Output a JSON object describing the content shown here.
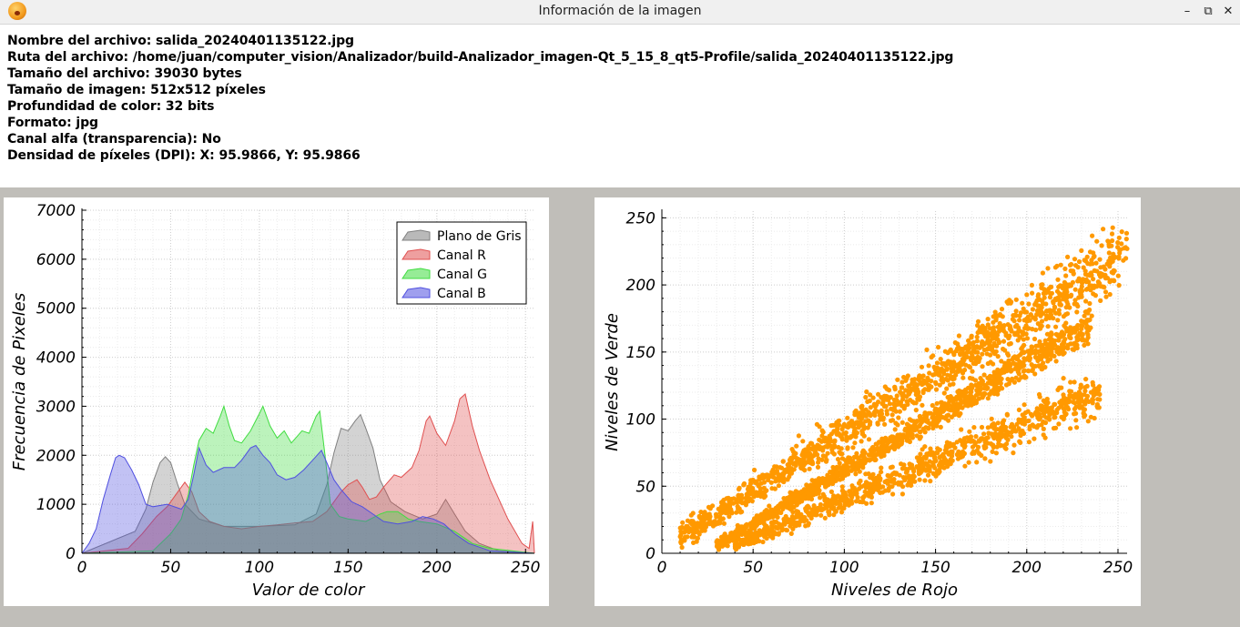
{
  "window": {
    "title": "Información de la imagen",
    "app_icon": "warning-face-icon",
    "buttons": {
      "minimize": "–",
      "restore": "⧉",
      "close": "✕"
    }
  },
  "info": {
    "lines": [
      "Nombre del archivo: salida_20240401135122.jpg",
      "Ruta del archivo: /home/juan/computer_vision/Analizador/build-Analizador_imagen-Qt_5_15_8_qt5-Profile/salida_20240401135122.jpg",
      "Tamaño del archivo: 39030 bytes",
      "Tamaño de imagen: 512x512 píxeles",
      "Profundidad de color: 32 bits",
      "Formato: jpg",
      "Canal alfa (transparencia): No",
      "Densidad de píxeles (DPI): X: 95.9866, Y: 95.9866"
    ]
  },
  "chart_data": [
    {
      "type": "area",
      "xlabel": "Valor de color",
      "ylabel": "Frecuencia de Pixeles",
      "xlim": [
        0,
        255
      ],
      "ylim": [
        0,
        7000
      ],
      "xticks": [
        0,
        50,
        100,
        150,
        200,
        250
      ],
      "yticks": [
        0,
        1000,
        2000,
        3000,
        4000,
        5000,
        6000,
        7000
      ],
      "grid": true,
      "legend_position": "top-right",
      "series": [
        {
          "name": "Plano de Gris",
          "color": "#808080",
          "points": [
            [
              0,
              0
            ],
            [
              30,
              450
            ],
            [
              36,
              900
            ],
            [
              40,
              1450
            ],
            [
              44,
              1850
            ],
            [
              47,
              1970
            ],
            [
              50,
              1850
            ],
            [
              54,
              1400
            ],
            [
              58,
              1000
            ],
            [
              66,
              700
            ],
            [
              80,
              550
            ],
            [
              100,
              550
            ],
            [
              120,
              580
            ],
            [
              132,
              800
            ],
            [
              138,
              1400
            ],
            [
              142,
              2050
            ],
            [
              146,
              2550
            ],
            [
              150,
              2500
            ],
            [
              154,
              2700
            ],
            [
              157,
              2830
            ],
            [
              160,
              2550
            ],
            [
              164,
              2150
            ],
            [
              168,
              1500
            ],
            [
              174,
              1050
            ],
            [
              182,
              850
            ],
            [
              192,
              700
            ],
            [
              200,
              800
            ],
            [
              205,
              1100
            ],
            [
              210,
              800
            ],
            [
              216,
              450
            ],
            [
              224,
              200
            ],
            [
              235,
              50
            ],
            [
              255,
              0
            ]
          ]
        },
        {
          "name": "Canal R",
          "color": "#e05050",
          "points": [
            [
              0,
              0
            ],
            [
              26,
              100
            ],
            [
              34,
              400
            ],
            [
              42,
              750
            ],
            [
              48,
              950
            ],
            [
              54,
              1250
            ],
            [
              58,
              1450
            ],
            [
              62,
              1250
            ],
            [
              66,
              850
            ],
            [
              72,
              650
            ],
            [
              80,
              550
            ],
            [
              90,
              500
            ],
            [
              100,
              550
            ],
            [
              110,
              580
            ],
            [
              120,
              620
            ],
            [
              130,
              650
            ],
            [
              138,
              850
            ],
            [
              146,
              1250
            ],
            [
              150,
              1400
            ],
            [
              155,
              1500
            ],
            [
              158,
              1350
            ],
            [
              162,
              1100
            ],
            [
              166,
              1150
            ],
            [
              170,
              1350
            ],
            [
              176,
              1600
            ],
            [
              180,
              1550
            ],
            [
              186,
              1750
            ],
            [
              190,
              2100
            ],
            [
              194,
              2700
            ],
            [
              196,
              2800
            ],
            [
              200,
              2450
            ],
            [
              205,
              2200
            ],
            [
              210,
              2700
            ],
            [
              213,
              3150
            ],
            [
              216,
              3250
            ],
            [
              220,
              2600
            ],
            [
              224,
              2100
            ],
            [
              230,
              1500
            ],
            [
              240,
              700
            ],
            [
              248,
              200
            ],
            [
              252,
              100
            ],
            [
              254,
              650
            ],
            [
              255,
              0
            ]
          ]
        },
        {
          "name": "Canal G",
          "color": "#40dd40",
          "points": [
            [
              0,
              0
            ],
            [
              40,
              50
            ],
            [
              50,
              400
            ],
            [
              56,
              700
            ],
            [
              60,
              1200
            ],
            [
              63,
              1800
            ],
            [
              66,
              2300
            ],
            [
              70,
              2550
            ],
            [
              74,
              2450
            ],
            [
              78,
              2800
            ],
            [
              80,
              3000
            ],
            [
              83,
              2600
            ],
            [
              86,
              2300
            ],
            [
              90,
              2250
            ],
            [
              95,
              2500
            ],
            [
              100,
              2850
            ],
            [
              102,
              3000
            ],
            [
              106,
              2600
            ],
            [
              110,
              2350
            ],
            [
              114,
              2500
            ],
            [
              118,
              2250
            ],
            [
              124,
              2500
            ],
            [
              128,
              2450
            ],
            [
              132,
              2800
            ],
            [
              134,
              2900
            ],
            [
              137,
              2000
            ],
            [
              140,
              1000
            ],
            [
              145,
              750
            ],
            [
              150,
              700
            ],
            [
              160,
              650
            ],
            [
              168,
              800
            ],
            [
              172,
              850
            ],
            [
              178,
              850
            ],
            [
              184,
              700
            ],
            [
              190,
              650
            ],
            [
              200,
              600
            ],
            [
              210,
              450
            ],
            [
              220,
              200
            ],
            [
              230,
              100
            ],
            [
              255,
              0
            ]
          ]
        },
        {
          "name": "Canal B",
          "color": "#5050e0",
          "points": [
            [
              0,
              0
            ],
            [
              4,
              200
            ],
            [
              8,
              500
            ],
            [
              12,
              1100
            ],
            [
              16,
              1600
            ],
            [
              19,
              1950
            ],
            [
              21,
              2000
            ],
            [
              24,
              1950
            ],
            [
              28,
              1700
            ],
            [
              32,
              1400
            ],
            [
              36,
              1000
            ],
            [
              40,
              950
            ],
            [
              48,
              1000
            ],
            [
              56,
              900
            ],
            [
              60,
              1100
            ],
            [
              63,
              1600
            ],
            [
              66,
              2150
            ],
            [
              70,
              1800
            ],
            [
              74,
              1650
            ],
            [
              80,
              1750
            ],
            [
              86,
              1750
            ],
            [
              90,
              1900
            ],
            [
              95,
              2150
            ],
            [
              98,
              2200
            ],
            [
              102,
              2000
            ],
            [
              106,
              1850
            ],
            [
              110,
              1600
            ],
            [
              115,
              1500
            ],
            [
              120,
              1550
            ],
            [
              125,
              1700
            ],
            [
              130,
              1900
            ],
            [
              135,
              2100
            ],
            [
              138,
              1850
            ],
            [
              142,
              1500
            ],
            [
              146,
              1300
            ],
            [
              152,
              1050
            ],
            [
              158,
              950
            ],
            [
              164,
              800
            ],
            [
              170,
              650
            ],
            [
              178,
              600
            ],
            [
              186,
              650
            ],
            [
              192,
              750
            ],
            [
              198,
              700
            ],
            [
              204,
              600
            ],
            [
              210,
              400
            ],
            [
              218,
              200
            ],
            [
              230,
              50
            ],
            [
              255,
              0
            ]
          ]
        }
      ]
    },
    {
      "type": "scatter",
      "xlabel": "Niveles de Rojo",
      "ylabel": "Niveles de Verde",
      "xlim": [
        0,
        255
      ],
      "ylim": [
        0,
        255
      ],
      "xticks": [
        0,
        50,
        100,
        150,
        200,
        250
      ],
      "yticks": [
        0,
        50,
        100,
        150,
        200,
        250
      ],
      "grid": true,
      "color": "#ff9900",
      "bands": [
        {
          "x": [
            10,
            255
          ],
          "g_low": [
            0,
            195
          ],
          "g_high": [
            25,
            250
          ],
          "n": 1300
        },
        {
          "x": [
            30,
            235
          ],
          "g_low": [
            0,
            165
          ],
          "g_high": [
            12,
            175
          ],
          "n": 1100
        },
        {
          "x": [
            40,
            240
          ],
          "g_low": [
            0,
            100
          ],
          "g_high": [
            12,
            140
          ],
          "n": 900
        }
      ],
      "seed": 7
    }
  ]
}
